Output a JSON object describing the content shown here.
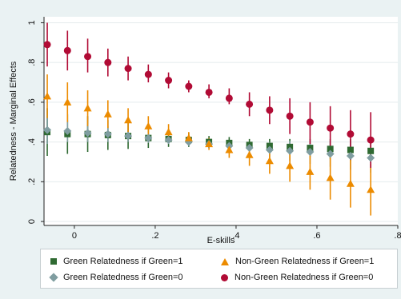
{
  "chart_data": {
    "type": "scatter",
    "xlabel": "E-skills",
    "ylabel": "Relatedness - Marginal Effects",
    "xlim": [
      -0.075,
      0.8
    ],
    "ylim": [
      -0.02,
      1.03
    ],
    "xticks": [
      0,
      0.2,
      0.4,
      0.6,
      0.8
    ],
    "xtick_labels": [
      "0",
      ".2",
      ".4",
      ".6",
      ".8"
    ],
    "yticks": [
      0,
      0.2,
      0.4,
      0.6,
      0.8,
      1
    ],
    "ytick_labels": [
      "0",
      ".2",
      ".4",
      ".6",
      ".8",
      "1"
    ],
    "grid": "horizontal",
    "legend_position": "bottom",
    "x": [
      -0.067,
      -0.017,
      0.033,
      0.083,
      0.133,
      0.183,
      0.233,
      0.283,
      0.333,
      0.383,
      0.433,
      0.483,
      0.533,
      0.583,
      0.633,
      0.683,
      0.733
    ],
    "series": [
      {
        "name": "Green Relatedness if Green=1",
        "color": "#2f6a32",
        "marker": "square",
        "values": [
          0.45,
          0.44,
          0.44,
          0.435,
          0.43,
          0.42,
          0.415,
          0.41,
          0.4,
          0.395,
          0.385,
          0.38,
          0.375,
          0.37,
          0.365,
          0.36,
          0.355
        ],
        "lower": [
          0.33,
          0.34,
          0.35,
          0.36,
          0.365,
          0.37,
          0.375,
          0.375,
          0.37,
          0.365,
          0.355,
          0.345,
          0.335,
          0.325,
          0.315,
          0.305,
          0.295
        ],
        "upper": [
          0.57,
          0.54,
          0.53,
          0.51,
          0.495,
          0.47,
          0.455,
          0.445,
          0.43,
          0.425,
          0.415,
          0.415,
          0.415,
          0.415,
          0.415,
          0.415,
          0.415
        ]
      },
      {
        "name": "Green Relatedness if Green=0",
        "color": "#7f9da0",
        "marker": "diamond",
        "values": [
          0.46,
          0.455,
          0.445,
          0.44,
          0.43,
          0.42,
          0.41,
          0.4,
          0.39,
          0.38,
          0.37,
          0.36,
          0.355,
          0.35,
          0.34,
          0.33,
          0.32
        ],
        "lower": [
          0.39,
          0.4,
          0.4,
          0.4,
          0.4,
          0.395,
          0.39,
          0.38,
          0.37,
          0.355,
          0.34,
          0.32,
          0.305,
          0.29,
          0.275,
          0.26,
          0.245
        ],
        "upper": [
          0.53,
          0.51,
          0.49,
          0.48,
          0.46,
          0.445,
          0.43,
          0.42,
          0.41,
          0.405,
          0.4,
          0.4,
          0.405,
          0.41,
          0.405,
          0.4,
          0.395
        ]
      },
      {
        "name": "Non-Green Relatedness if Green=1",
        "color": "#ec8b00",
        "marker": "triangle",
        "values": [
          0.63,
          0.6,
          0.57,
          0.54,
          0.51,
          0.48,
          0.45,
          0.42,
          0.39,
          0.36,
          0.335,
          0.305,
          0.28,
          0.25,
          0.22,
          0.19,
          0.16
        ],
        "lower": [
          0.52,
          0.5,
          0.48,
          0.47,
          0.45,
          0.43,
          0.41,
          0.39,
          0.36,
          0.32,
          0.28,
          0.24,
          0.2,
          0.16,
          0.11,
          0.07,
          0.03
        ],
        "upper": [
          0.74,
          0.7,
          0.66,
          0.61,
          0.57,
          0.53,
          0.49,
          0.45,
          0.42,
          0.4,
          0.39,
          0.37,
          0.36,
          0.34,
          0.33,
          0.31,
          0.29
        ]
      },
      {
        "name": "Non-Green Relatedness if Green=0",
        "color": "#b10b35",
        "marker": "circle",
        "values": [
          0.89,
          0.86,
          0.83,
          0.8,
          0.77,
          0.74,
          0.71,
          0.68,
          0.65,
          0.62,
          0.59,
          0.56,
          0.53,
          0.5,
          0.47,
          0.44,
          0.41
        ],
        "lower": [
          0.78,
          0.76,
          0.75,
          0.73,
          0.71,
          0.7,
          0.67,
          0.65,
          0.62,
          0.59,
          0.53,
          0.49,
          0.44,
          0.39,
          0.35,
          0.31,
          0.27
        ],
        "upper": [
          1.0,
          0.96,
          0.92,
          0.87,
          0.83,
          0.79,
          0.75,
          0.71,
          0.69,
          0.67,
          0.65,
          0.63,
          0.62,
          0.6,
          0.58,
          0.56,
          0.55
        ]
      }
    ]
  }
}
